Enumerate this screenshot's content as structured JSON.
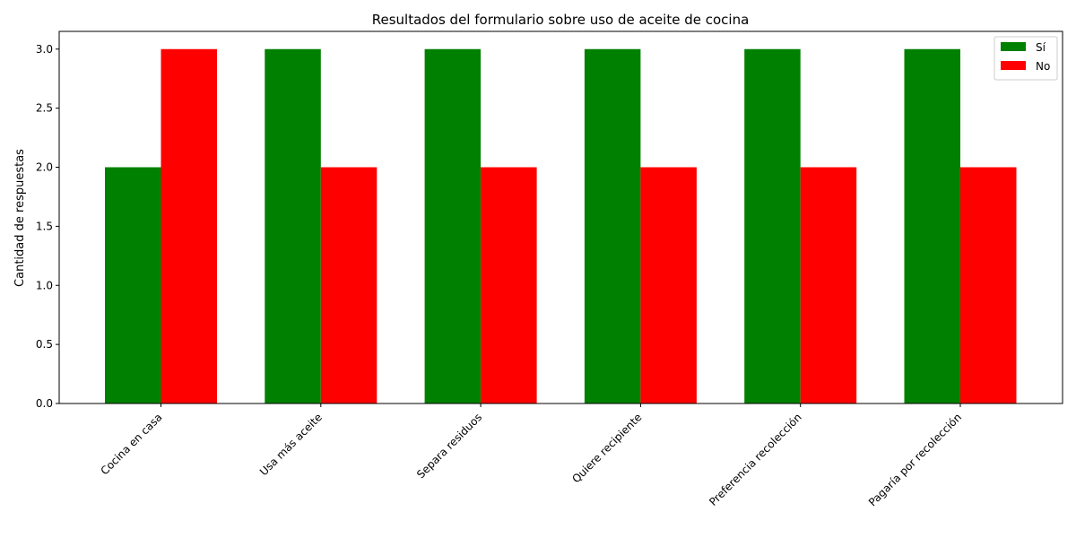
{
  "chart_data": {
    "type": "bar",
    "title": "Resultados del formulario sobre uso de aceite de cocina",
    "xlabel": "",
    "ylabel": "Cantidad de respuestas",
    "categories": [
      "Cocina en casa",
      "Usa más aceite",
      "Separa residuos",
      "Quiere recipiente",
      "Preferencia recolección",
      "Pagaría por recolección"
    ],
    "series": [
      {
        "name": "Sí",
        "values": [
          2,
          3,
          3,
          3,
          3,
          3
        ],
        "color": "#008000"
      },
      {
        "name": "No",
        "values": [
          3,
          2,
          2,
          2,
          2,
          2
        ],
        "color": "#ff0000"
      }
    ],
    "ylim": [
      0,
      3.15
    ],
    "yticks": [
      0.0,
      0.5,
      1.0,
      1.5,
      2.0,
      2.5,
      3.0
    ],
    "ytick_labels": [
      "0.0",
      "0.5",
      "1.0",
      "1.5",
      "2.0",
      "2.5",
      "3.0"
    ],
    "grid": false,
    "legend_position": "top-right"
  }
}
